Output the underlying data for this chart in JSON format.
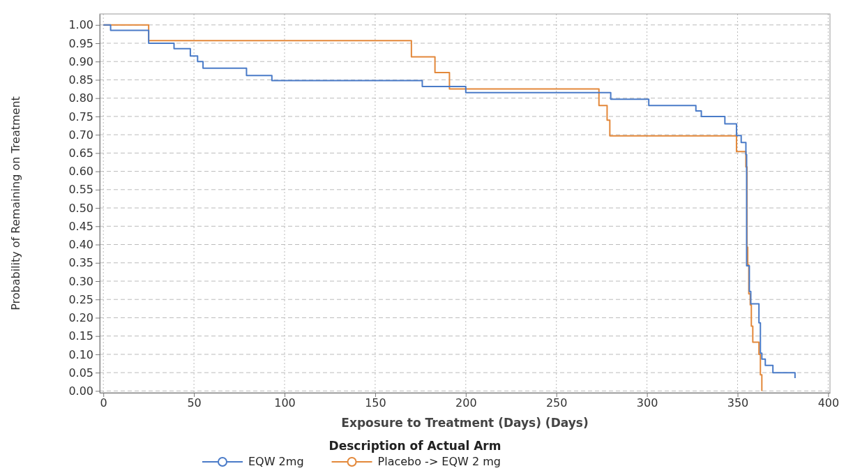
{
  "chart_data": {
    "type": "step",
    "xlabel": "Exposure to Treatment (Days) (Days)",
    "ylabel": "Probability of Remaining on Treatment",
    "legend_title": "Description of Actual Arm",
    "xlim": [
      -2,
      401
    ],
    "xticks": [
      0,
      50,
      100,
      150,
      200,
      250,
      300,
      350,
      400
    ],
    "ylim": [
      -0.005,
      1.03
    ],
    "yticks": [
      {
        "value": 0,
        "label": "0.00"
      },
      {
        "value": 0.05,
        "label": "0.05"
      },
      {
        "value": 0.1,
        "label": "0.10"
      },
      {
        "value": 0.15,
        "label": "0.15"
      },
      {
        "value": 0.2,
        "label": "0.20"
      },
      {
        "value": 0.25,
        "label": "0.25"
      },
      {
        "value": 0.3,
        "label": "0.30"
      },
      {
        "value": 0.35,
        "label": "0.35"
      },
      {
        "value": 0.4,
        "label": "0.40"
      },
      {
        "value": 0.45,
        "label": "0.45"
      },
      {
        "value": 0.5,
        "label": "0.50"
      },
      {
        "value": 0.55,
        "label": "0.55"
      },
      {
        "value": 0.6,
        "label": "0.60"
      },
      {
        "value": 0.65,
        "label": "0.65"
      },
      {
        "value": 0.7,
        "label": "0.70"
      },
      {
        "value": 0.75,
        "label": "0.75"
      },
      {
        "value": 0.8,
        "label": "0.80"
      },
      {
        "value": 0.85,
        "label": "0.85"
      },
      {
        "value": 0.9,
        "label": "0.90"
      },
      {
        "value": 0.95,
        "label": "0.95"
      },
      {
        "value": 1,
        "label": "1.00"
      }
    ],
    "grid": true,
    "legend": "bottom",
    "series": [
      {
        "name": "EQW 2mg",
        "color": "#4a7bc8",
        "x": [
          0,
          4,
          25,
          39,
          48,
          52,
          55,
          79,
          93,
          176,
          200,
          280,
          301,
          327,
          330,
          343,
          349.4,
          352,
          354.6,
          355,
          356.5,
          357.3,
          361.8,
          362.6,
          363.4,
          365.3,
          369.5,
          381.7
        ],
        "values": [
          1,
          0.985,
          0.95,
          0.935,
          0.915,
          0.9,
          0.882,
          0.862,
          0.848,
          0.832,
          0.815,
          0.797,
          0.78,
          0.765,
          0.75,
          0.73,
          0.698,
          0.679,
          0.646,
          0.342,
          0.272,
          0.238,
          0.186,
          0.103,
          0.087,
          0.07,
          0.05,
          0.035
        ]
      },
      {
        "name": "Placebo -> EQW 2 mg",
        "color": "#e3883a",
        "x": [
          0,
          25,
          170,
          183,
          191,
          273.5,
          278,
          279.5,
          349.4,
          354.6,
          355.2,
          355.6,
          356.2,
          357,
          357.6,
          358.4,
          361.8,
          362.6,
          363.4
        ],
        "values": [
          1,
          0.957,
          0.913,
          0.87,
          0.825,
          0.78,
          0.74,
          0.697,
          0.654,
          0.612,
          0.393,
          0.345,
          0.265,
          0.235,
          0.177,
          0.133,
          0.1,
          0.044,
          0
        ]
      }
    ]
  }
}
